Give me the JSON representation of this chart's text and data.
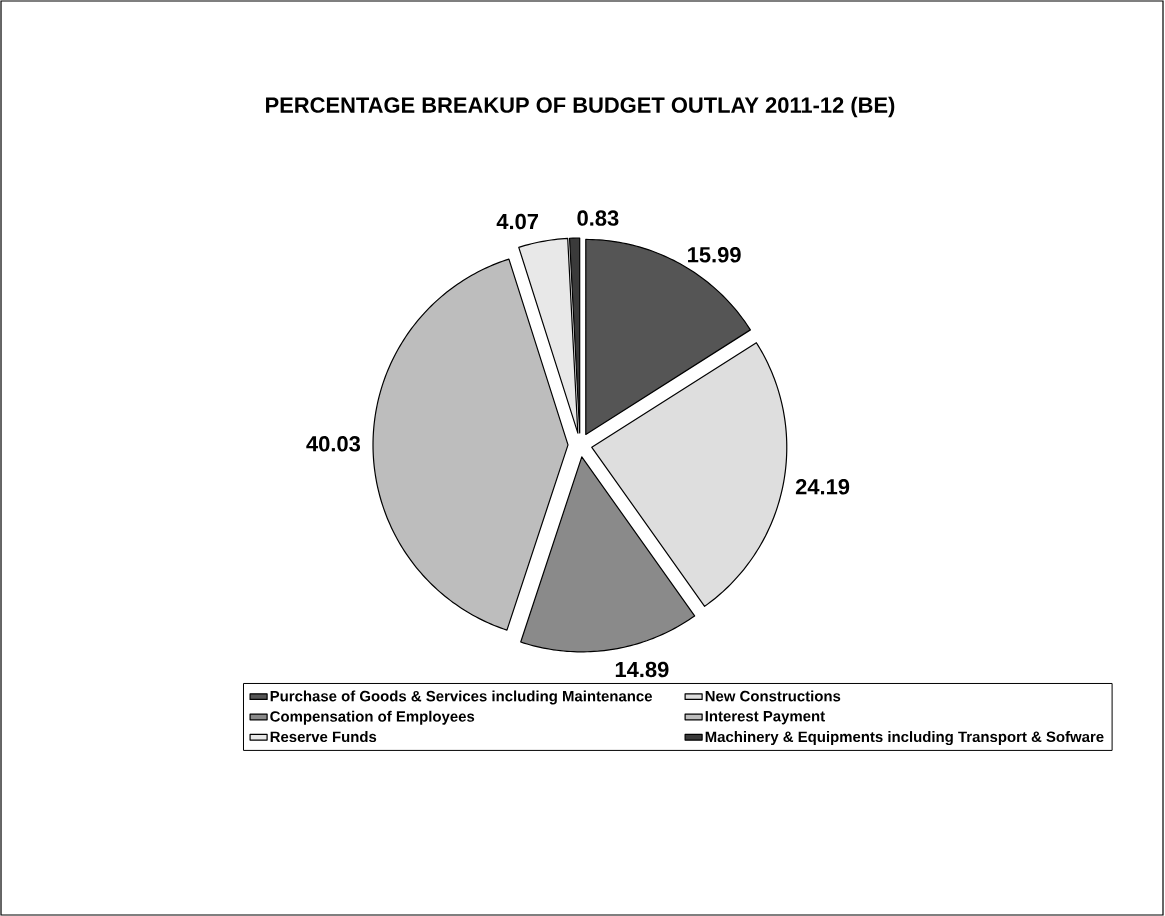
{
  "chart_data": {
    "type": "pie",
    "title": "PERCENTAGE BREAKUP OF BUDGET OUTLAY 2011-12 (BE)",
    "categories": [
      "Purchase of Goods & Services including Maintenance",
      "New Constructions",
      "Compensation of Employees",
      "Interest Payment",
      "Reserve Funds",
      "Machinery & Equipments including Transport & Sofware"
    ],
    "values": [
      15.99,
      24.19,
      14.89,
      40.03,
      4.07,
      0.83
    ],
    "colors": [
      "#555555",
      "#dedede",
      "#8a8a8a",
      "#bdbdbd",
      "#e8e8e8",
      "#3a3a3a"
    ],
    "data_labels": true,
    "legend": "bottom"
  }
}
